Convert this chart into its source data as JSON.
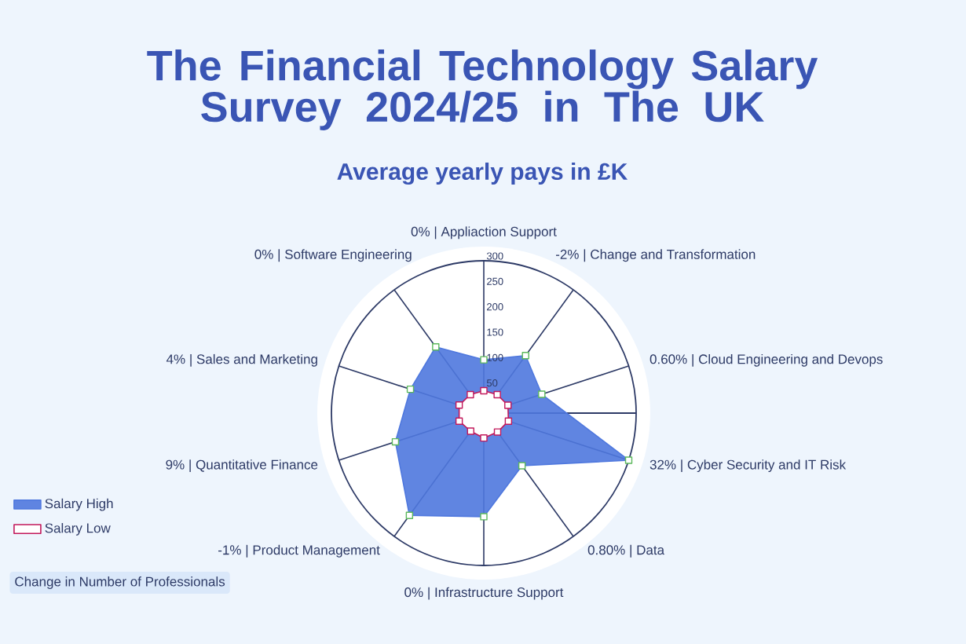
{
  "chart_data": {
    "type": "radar",
    "title": "The Financial Technology Salary Survey 2024/25 in The UK",
    "subtitle": "Average yearly pays in £K",
    "categories": [
      "0% | Appliaction Support",
      "-2% | Change and Transformation",
      "0.60% | Cloud Engineering and Devops",
      "32% | Cyber Security and IT Risk",
      "0.80% | Data",
      "0% | Infrastructure Support",
      "-1% | Product Management",
      "9% | Quantitative Finance",
      "4% | Sales and Marketing",
      "0% | Software Engineering"
    ],
    "series": [
      {
        "name": "Salary High",
        "color": "#4f78de",
        "values": [
          105,
          140,
          120,
          300,
          128,
          204,
          249,
          183,
          152,
          161
        ]
      },
      {
        "name": "Salary Low",
        "color": "#c2185b",
        "values": [
          44,
          45,
          50,
          51,
          46,
          49,
          44,
          51,
          51,
          45
        ]
      }
    ],
    "ylim": [
      0,
      300
    ],
    "yticks": [
      50,
      100,
      150,
      200,
      250,
      300
    ],
    "grid": "x",
    "legend": "bottom left",
    "marker": "square",
    "annotations": [
      "Change in Number of Professionals"
    ]
  }
}
